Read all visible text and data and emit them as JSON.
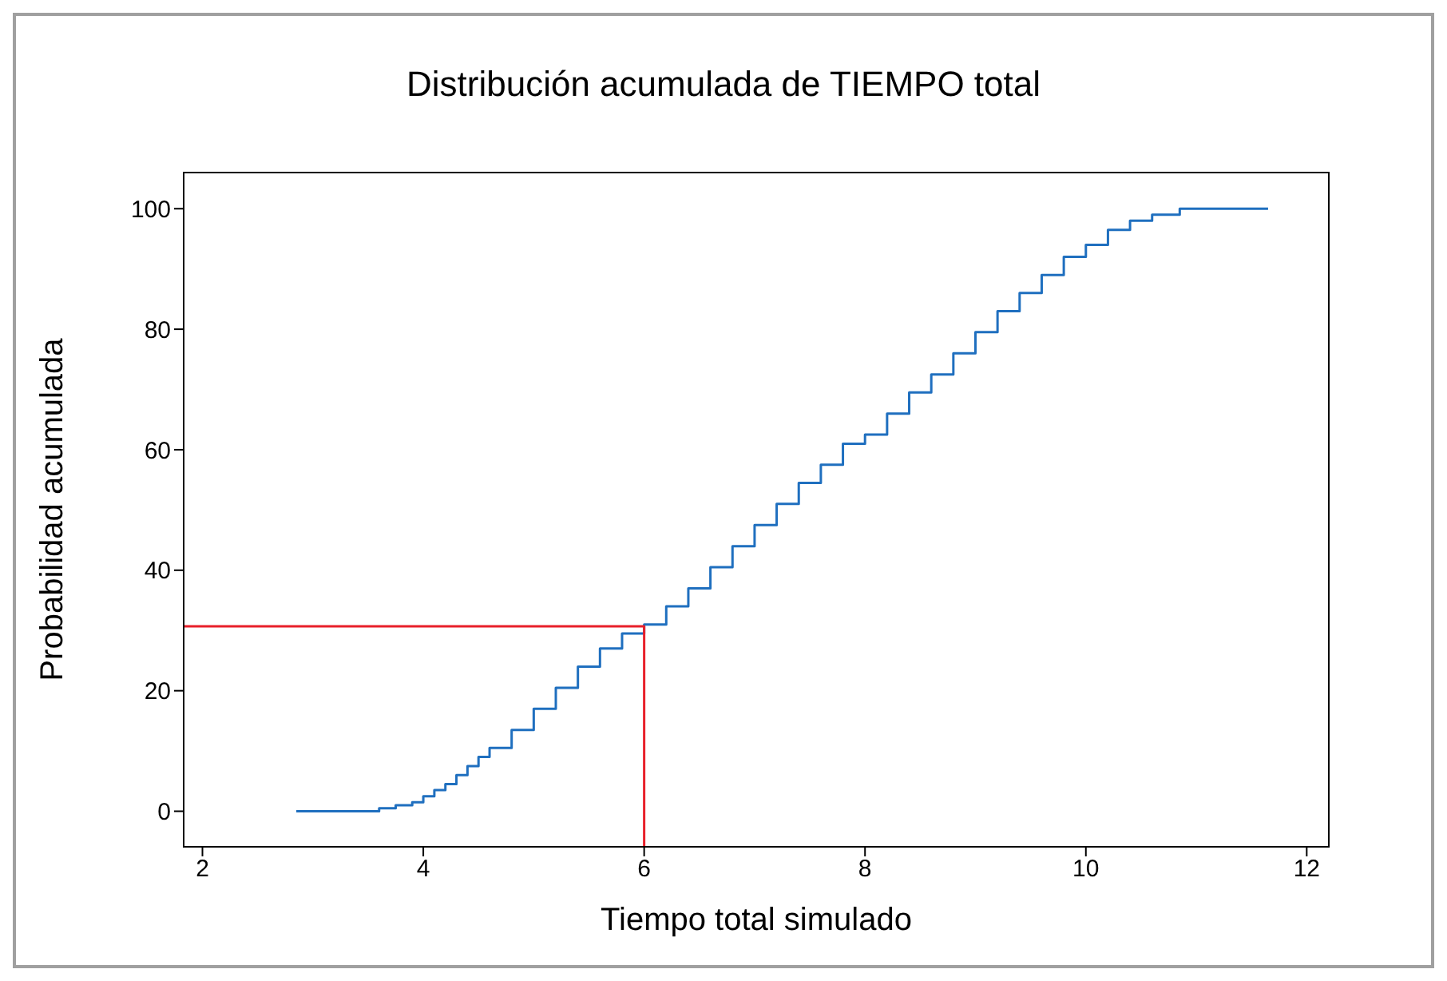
{
  "chart_data": {
    "type": "step",
    "title": "Distribución acumulada de TIEMPO total",
    "xlabel": "Tiempo total simulado",
    "ylabel": "Probabilidad acumulada",
    "xlim": [
      1.83,
      12.2
    ],
    "ylim": [
      -5.9,
      106
    ],
    "xticks": [
      2,
      4,
      6,
      8,
      10,
      12
    ],
    "yticks": [
      0,
      20,
      40,
      60,
      80,
      100
    ],
    "marker": "none",
    "series": [
      {
        "color": "#1f6fbf",
        "x": [
          2.85,
          3.6,
          3.75,
          3.9,
          4.0,
          4.1,
          4.2,
          4.3,
          4.4,
          4.5,
          4.6,
          4.8,
          5.0,
          5.2,
          5.4,
          5.6,
          5.8,
          6.0,
          6.2,
          6.4,
          6.6,
          6.8,
          7.0,
          7.2,
          7.4,
          7.6,
          7.8,
          8.0,
          8.2,
          8.4,
          8.6,
          8.8,
          9.0,
          9.2,
          9.4,
          9.6,
          9.8,
          10.0,
          10.2,
          10.4,
          10.6,
          10.85,
          11.65
        ],
        "values": [
          0,
          0.5,
          1,
          1.5,
          2.5,
          3.5,
          4.5,
          6,
          7.5,
          9,
          10.5,
          13.5,
          17,
          20.5,
          24,
          27,
          29.5,
          31,
          34,
          37,
          40.5,
          44,
          47.5,
          51,
          54.5,
          57.5,
          61,
          62.5,
          66,
          69.5,
          72.5,
          76,
          79.5,
          83,
          86,
          89,
          92,
          94,
          96.5,
          98,
          99,
          100,
          100
        ]
      },
      {
        "type": "line",
        "color": "#e8202a",
        "x": [
          1.83,
          6,
          6
        ],
        "values": [
          30.7,
          30.7,
          -5.9
        ]
      }
    ]
  }
}
